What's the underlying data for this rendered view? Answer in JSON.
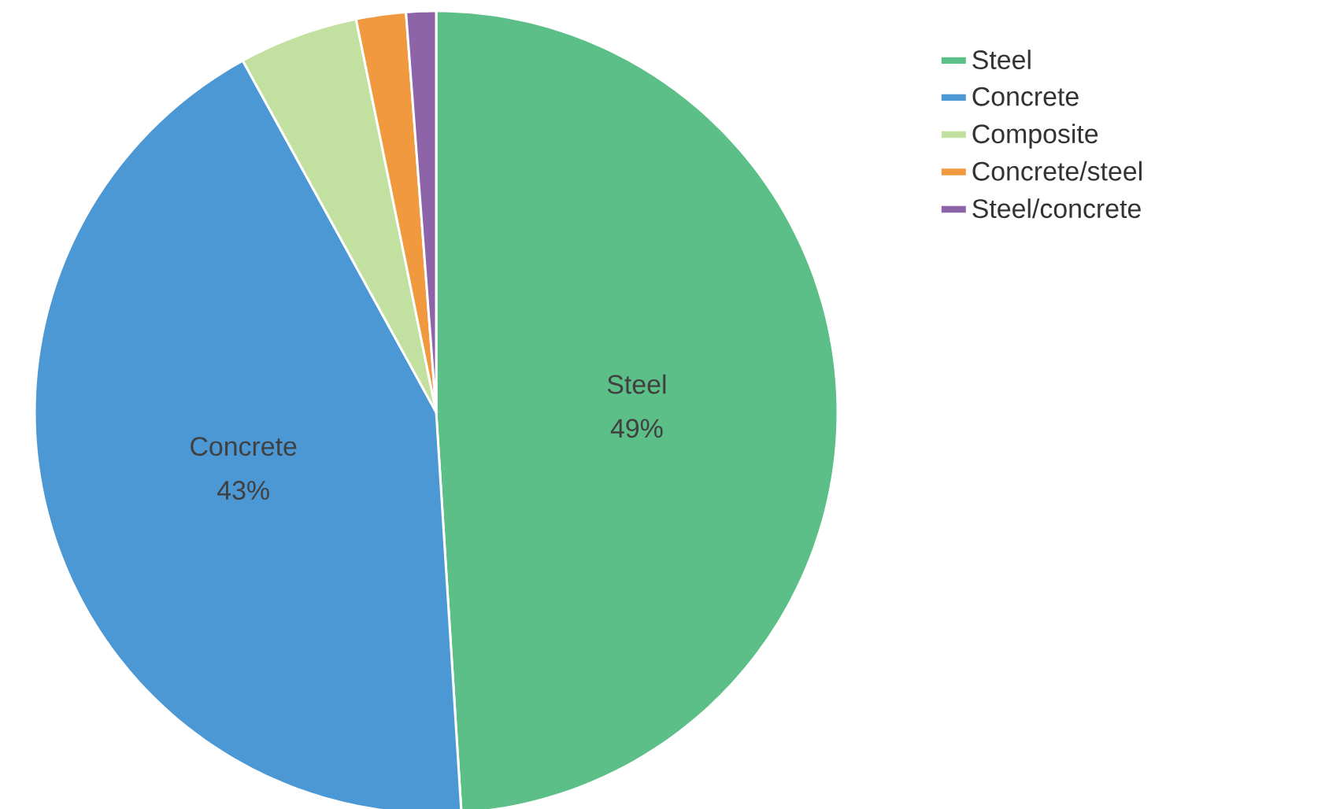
{
  "chart_data": {
    "type": "pie",
    "categories": [
      "Steel",
      "Concrete",
      "Composite",
      "Concrete/steel",
      "Steel/concrete"
    ],
    "values": [
      49,
      43,
      4.8,
      2.0,
      1.2
    ],
    "colors": [
      "#5cbf87",
      "#4c98d4",
      "#c2e0a0",
      "#f0993f",
      "#8d64a8"
    ],
    "value_labels": [
      "49%",
      "43%",
      null,
      null,
      null
    ],
    "legend": "right"
  }
}
